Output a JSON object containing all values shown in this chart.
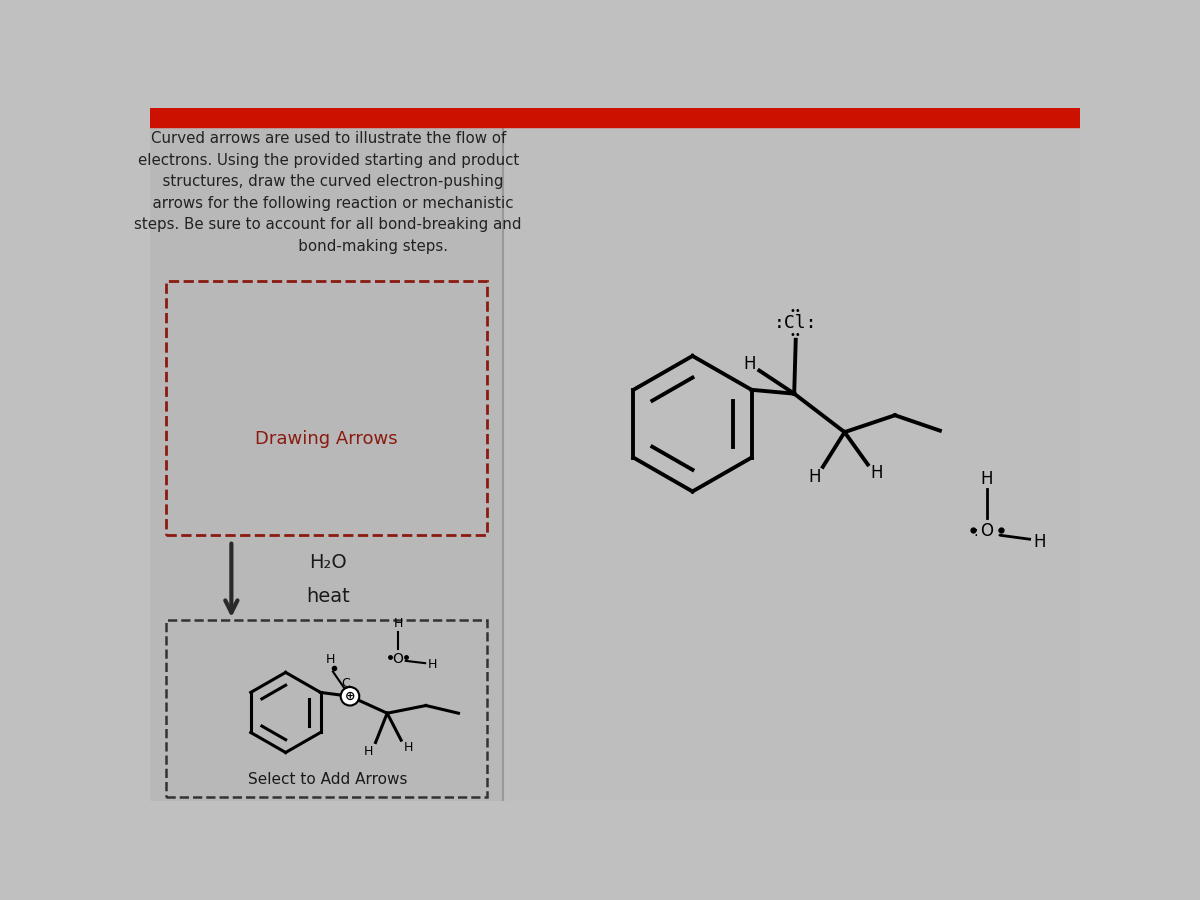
{
  "bg_color": "#c0c0c0",
  "left_bg": "#b8b8b8",
  "right_bg": "#bebebe",
  "top_bar_color": "#cc1100",
  "divider_color": "#999999",
  "title_lines": [
    "Curved arrows are used to illustrate the flow of",
    "electrons. Using the provided starting and product",
    "  structures, draw the curved electron-pushing",
    "  arrows for the following reaction or mechanistic",
    "steps. Be sure to account for all bond-breaking and",
    "                   bond-making steps."
  ],
  "title_fontsize": 10.8,
  "drawing_arrows_text": "Drawing Arrows",
  "drawing_arrows_color": "#8b1a10",
  "h2o_text": "H₂O",
  "heat_text": "heat",
  "select_text": "Select to Add Arrows"
}
